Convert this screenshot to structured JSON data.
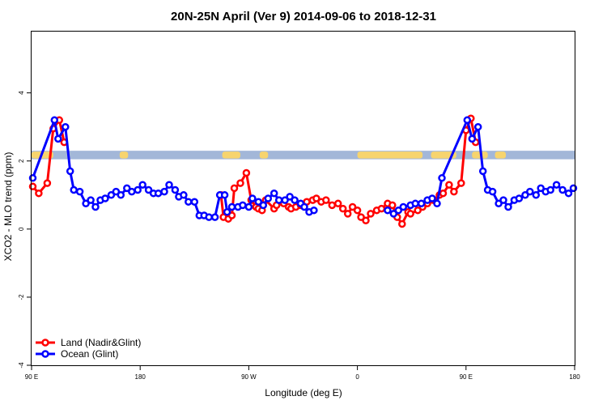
{
  "chart_data": {
    "type": "line",
    "title": "20N-25N April (Ver 9)   2014-09-06 to 2018-12-31",
    "xlabel": "Longitude (deg E)",
    "ylabel": "XCO2 - MLO trend (ppm)",
    "xlim": [
      90,
      540
    ],
    "ylim": [
      -4,
      5.8
    ],
    "x_ticks": [
      {
        "value": 90,
        "label": "90 E"
      },
      {
        "value": 180,
        "label": "180"
      },
      {
        "value": 270,
        "label": "90 W"
      },
      {
        "value": 360,
        "label": "0"
      },
      {
        "value": 450,
        "label": "90 E"
      },
      {
        "value": 540,
        "label": "180"
      }
    ],
    "y_ticks": [
      {
        "value": -4,
        "label": "-4"
      },
      {
        "value": -2,
        "label": "-2"
      },
      {
        "value": 0,
        "label": "0"
      },
      {
        "value": 2,
        "label": "2"
      },
      {
        "value": 4,
        "label": "4"
      }
    ],
    "map_band": {
      "y_range": [
        2.05,
        2.3
      ],
      "ocean_color": "#a3b7d8",
      "land_color": "#f7d46e",
      "land_x": [
        [
          90,
          108
        ],
        [
          163,
          170
        ],
        [
          248,
          263
        ],
        [
          279,
          286
        ],
        [
          360,
          414
        ],
        [
          421,
          442
        ],
        [
          455,
          468
        ],
        [
          474,
          483
        ]
      ]
    },
    "legend_position": "bottom-left",
    "series": [
      {
        "name": "Land (Nadir&Glint)",
        "color": "#ff0000",
        "segments": [
          [
            [
              91,
              1.25
            ],
            [
              96,
              1.05
            ],
            [
              103,
              1.35
            ],
            [
              108,
              2.95
            ],
            [
              113,
              3.2
            ],
            [
              117,
              2.55
            ]
          ],
          [
            [
              247,
              1.0
            ],
            [
              249,
              0.35
            ],
            [
              253,
              0.3
            ],
            [
              256,
              0.4
            ],
            [
              258,
              1.2
            ],
            [
              263,
              1.35
            ],
            [
              268,
              1.65
            ],
            [
              272,
              0.85
            ],
            [
              276,
              0.65
            ],
            [
              278,
              0.6
            ],
            [
              281,
              0.55
            ],
            [
              284,
              0.85
            ],
            [
              291,
              0.6
            ],
            [
              293,
              0.7
            ],
            [
              299,
              0.75
            ],
            [
              303,
              0.65
            ],
            [
              305,
              0.6
            ],
            [
              309,
              0.65
            ],
            [
              313,
              0.7
            ],
            [
              318,
              0.8
            ],
            [
              323,
              0.85
            ],
            [
              326,
              0.9
            ],
            [
              330,
              0.8
            ],
            [
              334,
              0.85
            ],
            [
              339,
              0.7
            ],
            [
              344,
              0.75
            ],
            [
              348,
              0.6
            ],
            [
              352,
              0.45
            ],
            [
              356,
              0.65
            ],
            [
              360,
              0.55
            ],
            [
              363,
              0.35
            ],
            [
              367,
              0.25
            ],
            [
              371,
              0.45
            ],
            [
              376,
              0.55
            ],
            [
              380,
              0.6
            ],
            [
              385,
              0.75
            ],
            [
              389,
              0.7
            ],
            [
              393,
              0.35
            ],
            [
              397,
              0.15
            ],
            [
              402,
              0.5
            ],
            [
              404,
              0.45
            ],
            [
              410,
              0.55
            ],
            [
              414,
              0.65
            ],
            [
              418,
              0.75
            ],
            [
              423,
              0.85
            ],
            [
              428,
              1.0
            ],
            [
              431,
              1.05
            ],
            [
              436,
              1.3
            ],
            [
              440,
              1.1
            ],
            [
              446,
              1.35
            ],
            [
              450,
              2.9
            ],
            [
              454,
              3.25
            ],
            [
              458,
              2.55
            ]
          ]
        ]
      },
      {
        "name": "Ocean (Glint)",
        "color": "#0000ff",
        "segments": [
          [
            [
              91,
              1.5
            ],
            [
              109,
              3.2
            ],
            [
              112,
              2.65
            ],
            [
              118,
              3.0
            ],
            [
              122,
              1.7
            ],
            [
              125,
              1.15
            ],
            [
              130,
              1.1
            ],
            [
              135,
              0.75
            ],
            [
              139,
              0.85
            ],
            [
              143,
              0.65
            ],
            [
              147,
              0.85
            ],
            [
              151,
              0.9
            ],
            [
              156,
              1.0
            ],
            [
              160,
              1.1
            ],
            [
              164,
              1.0
            ],
            [
              169,
              1.2
            ],
            [
              173,
              1.1
            ],
            [
              178,
              1.15
            ],
            [
              182,
              1.3
            ],
            [
              187,
              1.15
            ],
            [
              191,
              1.05
            ],
            [
              195,
              1.05
            ],
            [
              200,
              1.1
            ],
            [
              204,
              1.3
            ],
            [
              209,
              1.15
            ],
            [
              212,
              0.95
            ],
            [
              216,
              1.0
            ],
            [
              220,
              0.8
            ],
            [
              225,
              0.8
            ],
            [
              229,
              0.4
            ],
            [
              233,
              0.4
            ],
            [
              237,
              0.35
            ],
            [
              242,
              0.35
            ],
            [
              246,
              1.0
            ],
            [
              250,
              1.0
            ],
            [
              252,
              0.5
            ],
            [
              256,
              0.65
            ],
            [
              261,
              0.65
            ],
            [
              265,
              0.7
            ],
            [
              270,
              0.65
            ],
            [
              273,
              0.9
            ],
            [
              278,
              0.8
            ],
            [
              282,
              0.7
            ],
            [
              286,
              0.9
            ],
            [
              291,
              1.05
            ],
            [
              295,
              0.85
            ],
            [
              300,
              0.85
            ],
            [
              304,
              0.95
            ],
            [
              308,
              0.85
            ],
            [
              313,
              0.75
            ],
            [
              316,
              0.65
            ],
            [
              320,
              0.5
            ],
            [
              324,
              0.55
            ]
          ],
          [
            [
              385,
              0.55
            ],
            [
              390,
              0.45
            ],
            [
              394,
              0.55
            ],
            [
              398,
              0.65
            ],
            [
              404,
              0.7
            ],
            [
              408,
              0.75
            ],
            [
              413,
              0.75
            ],
            [
              418,
              0.85
            ],
            [
              422,
              0.9
            ],
            [
              426,
              0.75
            ],
            [
              430,
              1.5
            ],
            [
              451,
              3.2
            ],
            [
              455,
              2.65
            ],
            [
              460,
              3.0
            ],
            [
              464,
              1.7
            ],
            [
              468,
              1.15
            ],
            [
              472,
              1.1
            ],
            [
              477,
              0.75
            ],
            [
              481,
              0.85
            ],
            [
              485,
              0.65
            ],
            [
              490,
              0.85
            ],
            [
              494,
              0.9
            ],
            [
              499,
              1.0
            ],
            [
              503,
              1.1
            ],
            [
              508,
              1.0
            ],
            [
              512,
              1.2
            ],
            [
              516,
              1.1
            ],
            [
              520,
              1.15
            ],
            [
              525,
              1.3
            ],
            [
              530,
              1.15
            ],
            [
              535,
              1.05
            ],
            [
              539,
              1.2
            ]
          ]
        ]
      }
    ]
  }
}
